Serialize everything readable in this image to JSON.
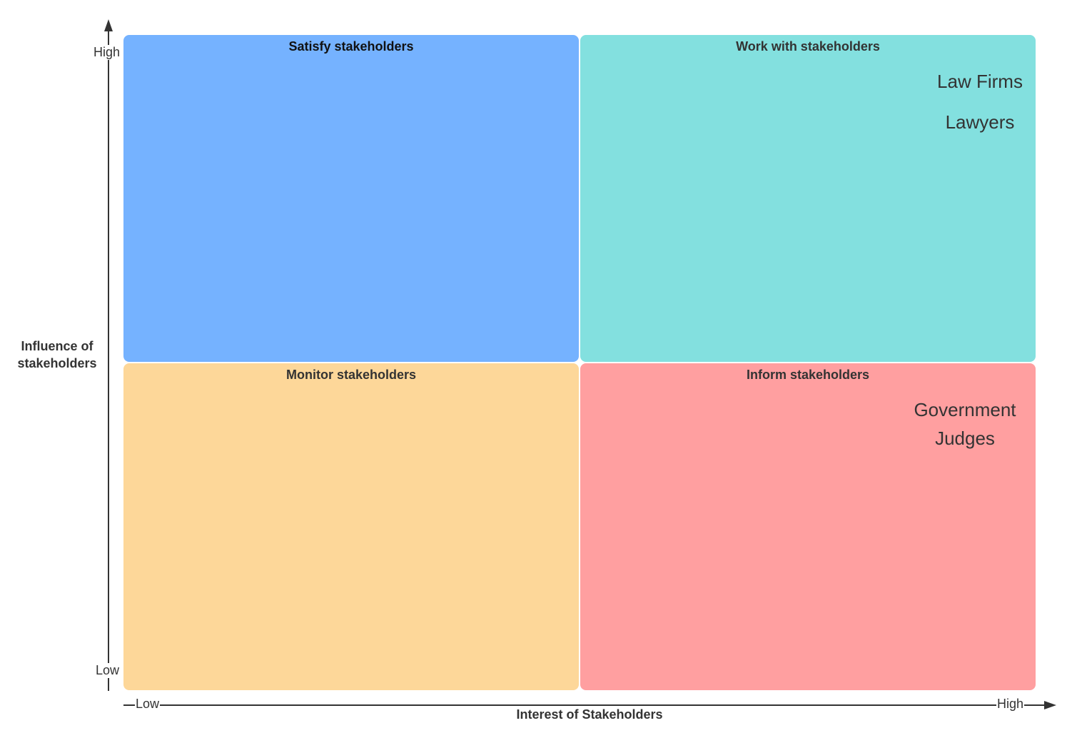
{
  "axes": {
    "y_title": "Influence of stakeholders",
    "y_high": "High",
    "y_low": "Low",
    "x_title": "Interest of Stakeholders",
    "x_low": "Low",
    "x_high": "High"
  },
  "quadrants": {
    "top_left": {
      "title": "Satisfy stakeholders",
      "color": "#75b2ff",
      "items": []
    },
    "top_right": {
      "title": "Work with stakeholders",
      "color": "#83e0df",
      "items": [
        "Law Firms",
        "Lawyers"
      ]
    },
    "bottom_left": {
      "title": "Monitor stakeholders",
      "color": "#fdd799",
      "items": []
    },
    "bottom_right": {
      "title": "Inform stakeholders",
      "color": "#ff9fa0",
      "items": [
        "Government",
        "Judges"
      ]
    }
  }
}
